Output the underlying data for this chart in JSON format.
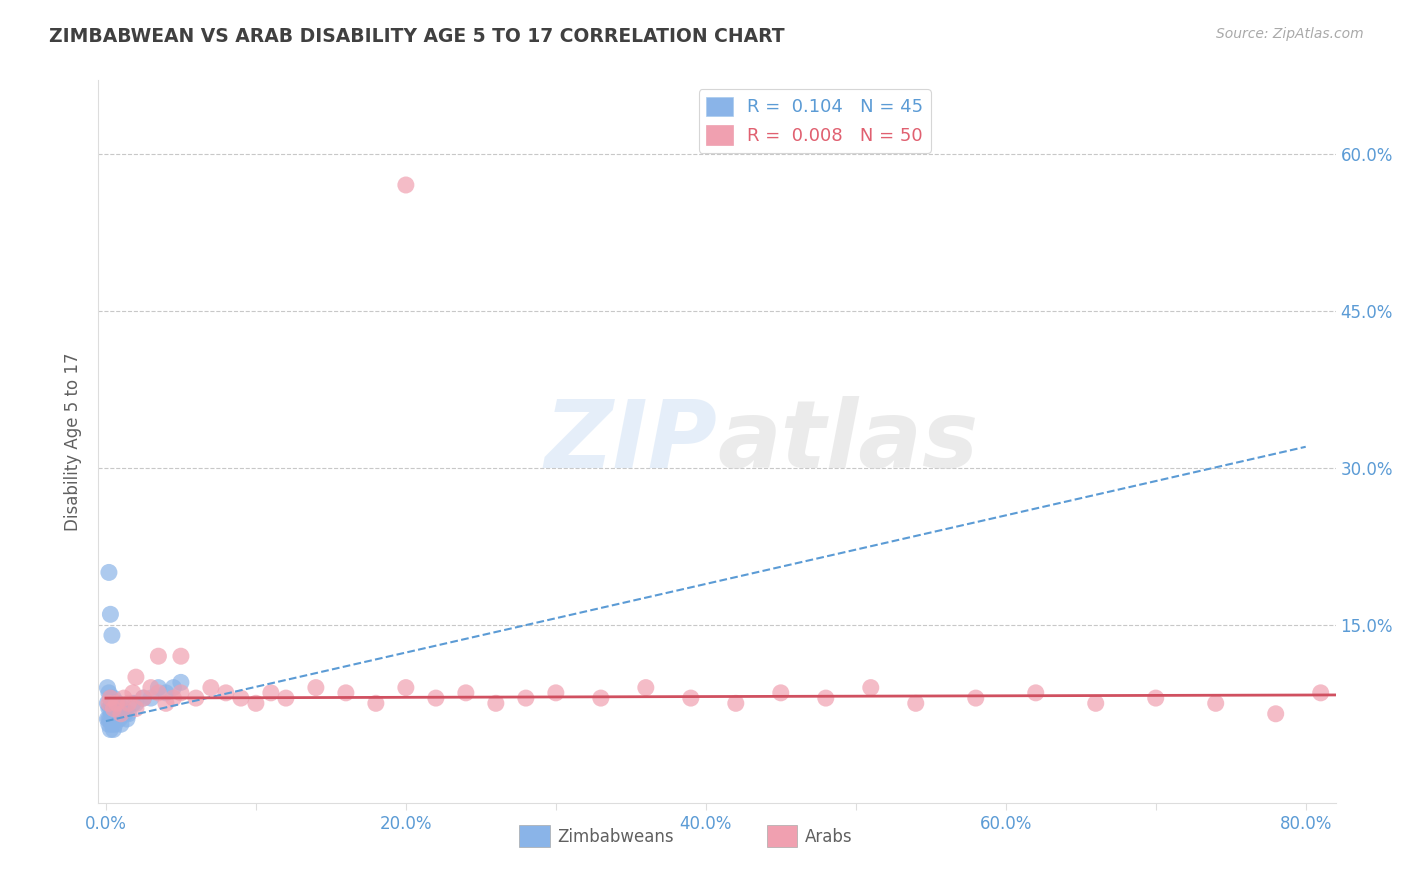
{
  "title": "ZIMBABWEAN VS ARAB DISABILITY AGE 5 TO 17 CORRELATION CHART",
  "source": "Source: ZipAtlas.com",
  "ylabel": "Disability Age 5 to 17",
  "xlim": [
    -0.005,
    0.82
  ],
  "ylim": [
    -0.02,
    0.67
  ],
  "yticks": [
    0.15,
    0.3,
    0.45,
    0.6
  ],
  "ytick_labels": [
    "15.0%",
    "30.0%",
    "45.0%",
    "60.0%"
  ],
  "xticks": [
    0.0,
    0.1,
    0.2,
    0.3,
    0.4,
    0.5,
    0.6,
    0.7,
    0.8
  ],
  "xtick_labels_major": [
    "0.0%",
    "",
    "20.0%",
    "",
    "40.0%",
    "",
    "60.0%",
    "",
    "80.0%"
  ],
  "watermark": "ZIPatlas",
  "legend_r1": "R =  0.104   N = 45",
  "legend_r2": "R =  0.008   N = 50",
  "legend_r1_color": "#5b9bd5",
  "legend_r2_color": "#e06070",
  "zimbabwean_color": "#8ab4e8",
  "arab_color": "#f0a0b0",
  "zimbabwean_trend_color": "#5b9bd5",
  "arab_trend_color": "#d05060",
  "background_color": "#ffffff",
  "grid_color": "#c8c8c8",
  "title_color": "#404040",
  "axis_label_color": "#606060",
  "tick_label_color": "#5b9bd5",
  "legend_box_color": "#5b9bd5",
  "legend_box2_color": "#f0a0b0",
  "zimbabwean_x": [
    0.001,
    0.001,
    0.001,
    0.002,
    0.002,
    0.002,
    0.002,
    0.003,
    0.003,
    0.003,
    0.003,
    0.004,
    0.004,
    0.004,
    0.005,
    0.005,
    0.005,
    0.005,
    0.006,
    0.006,
    0.006,
    0.007,
    0.007,
    0.008,
    0.008,
    0.009,
    0.009,
    0.01,
    0.01,
    0.011,
    0.012,
    0.013,
    0.014,
    0.015,
    0.018,
    0.02,
    0.025,
    0.03,
    0.035,
    0.04,
    0.045,
    0.05,
    0.002,
    0.003,
    0.004
  ],
  "zimbabwean_y": [
    0.09,
    0.075,
    0.06,
    0.085,
    0.07,
    0.06,
    0.055,
    0.08,
    0.07,
    0.06,
    0.05,
    0.075,
    0.065,
    0.055,
    0.08,
    0.07,
    0.06,
    0.05,
    0.075,
    0.065,
    0.055,
    0.07,
    0.06,
    0.075,
    0.06,
    0.07,
    0.06,
    0.065,
    0.055,
    0.07,
    0.065,
    0.065,
    0.06,
    0.065,
    0.075,
    0.075,
    0.08,
    0.08,
    0.09,
    0.085,
    0.09,
    0.095,
    0.2,
    0.16,
    0.14
  ],
  "arab_x": [
    0.002,
    0.003,
    0.005,
    0.007,
    0.01,
    0.012,
    0.015,
    0.018,
    0.02,
    0.025,
    0.03,
    0.035,
    0.04,
    0.045,
    0.05,
    0.06,
    0.07,
    0.08,
    0.09,
    0.1,
    0.11,
    0.12,
    0.14,
    0.16,
    0.18,
    0.2,
    0.22,
    0.24,
    0.26,
    0.28,
    0.3,
    0.33,
    0.36,
    0.39,
    0.42,
    0.45,
    0.48,
    0.51,
    0.54,
    0.58,
    0.62,
    0.66,
    0.7,
    0.74,
    0.78,
    0.81,
    0.02,
    0.035,
    0.05,
    0.2
  ],
  "arab_y": [
    0.075,
    0.08,
    0.07,
    0.075,
    0.065,
    0.08,
    0.075,
    0.085,
    0.07,
    0.08,
    0.09,
    0.085,
    0.075,
    0.08,
    0.085,
    0.08,
    0.09,
    0.085,
    0.08,
    0.075,
    0.085,
    0.08,
    0.09,
    0.085,
    0.075,
    0.09,
    0.08,
    0.085,
    0.075,
    0.08,
    0.085,
    0.08,
    0.09,
    0.08,
    0.075,
    0.085,
    0.08,
    0.09,
    0.075,
    0.08,
    0.085,
    0.075,
    0.08,
    0.075,
    0.065,
    0.085,
    0.1,
    0.12,
    0.12,
    0.57
  ],
  "zimbabwean_trend": [
    0.0,
    0.8,
    0.058,
    0.32
  ],
  "arab_trend": [
    0.0,
    0.82,
    0.08,
    0.083
  ]
}
